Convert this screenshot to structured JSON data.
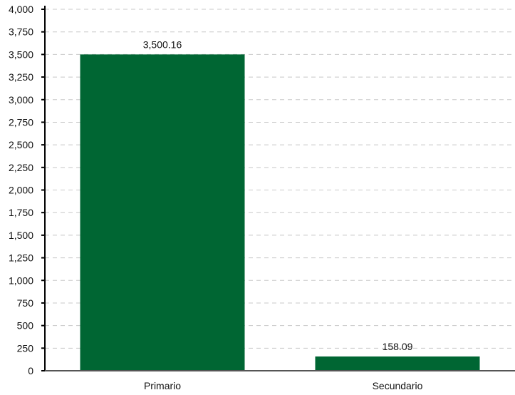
{
  "chart_data": {
    "type": "bar",
    "categories": [
      "Primario",
      "Secundario"
    ],
    "values": [
      3500.16,
      158.09
    ],
    "value_labels": [
      "3,500.16",
      "158.09"
    ],
    "ylim": [
      0,
      4000
    ],
    "yticks": [
      0,
      250,
      500,
      750,
      1000,
      1250,
      1500,
      1750,
      2000,
      2250,
      2500,
      2750,
      3000,
      3250,
      3500,
      3750,
      4000
    ],
    "ytick_labels": [
      "0",
      "250",
      "500",
      "750",
      "1,000",
      "1,250",
      "1,500",
      "1,750",
      "2,000",
      "2,250",
      "2,500",
      "2,750",
      "3,000",
      "3,250",
      "3,500",
      "3,750",
      "4,000"
    ],
    "bar_color": "#006633",
    "grid": true,
    "legend": "none"
  }
}
